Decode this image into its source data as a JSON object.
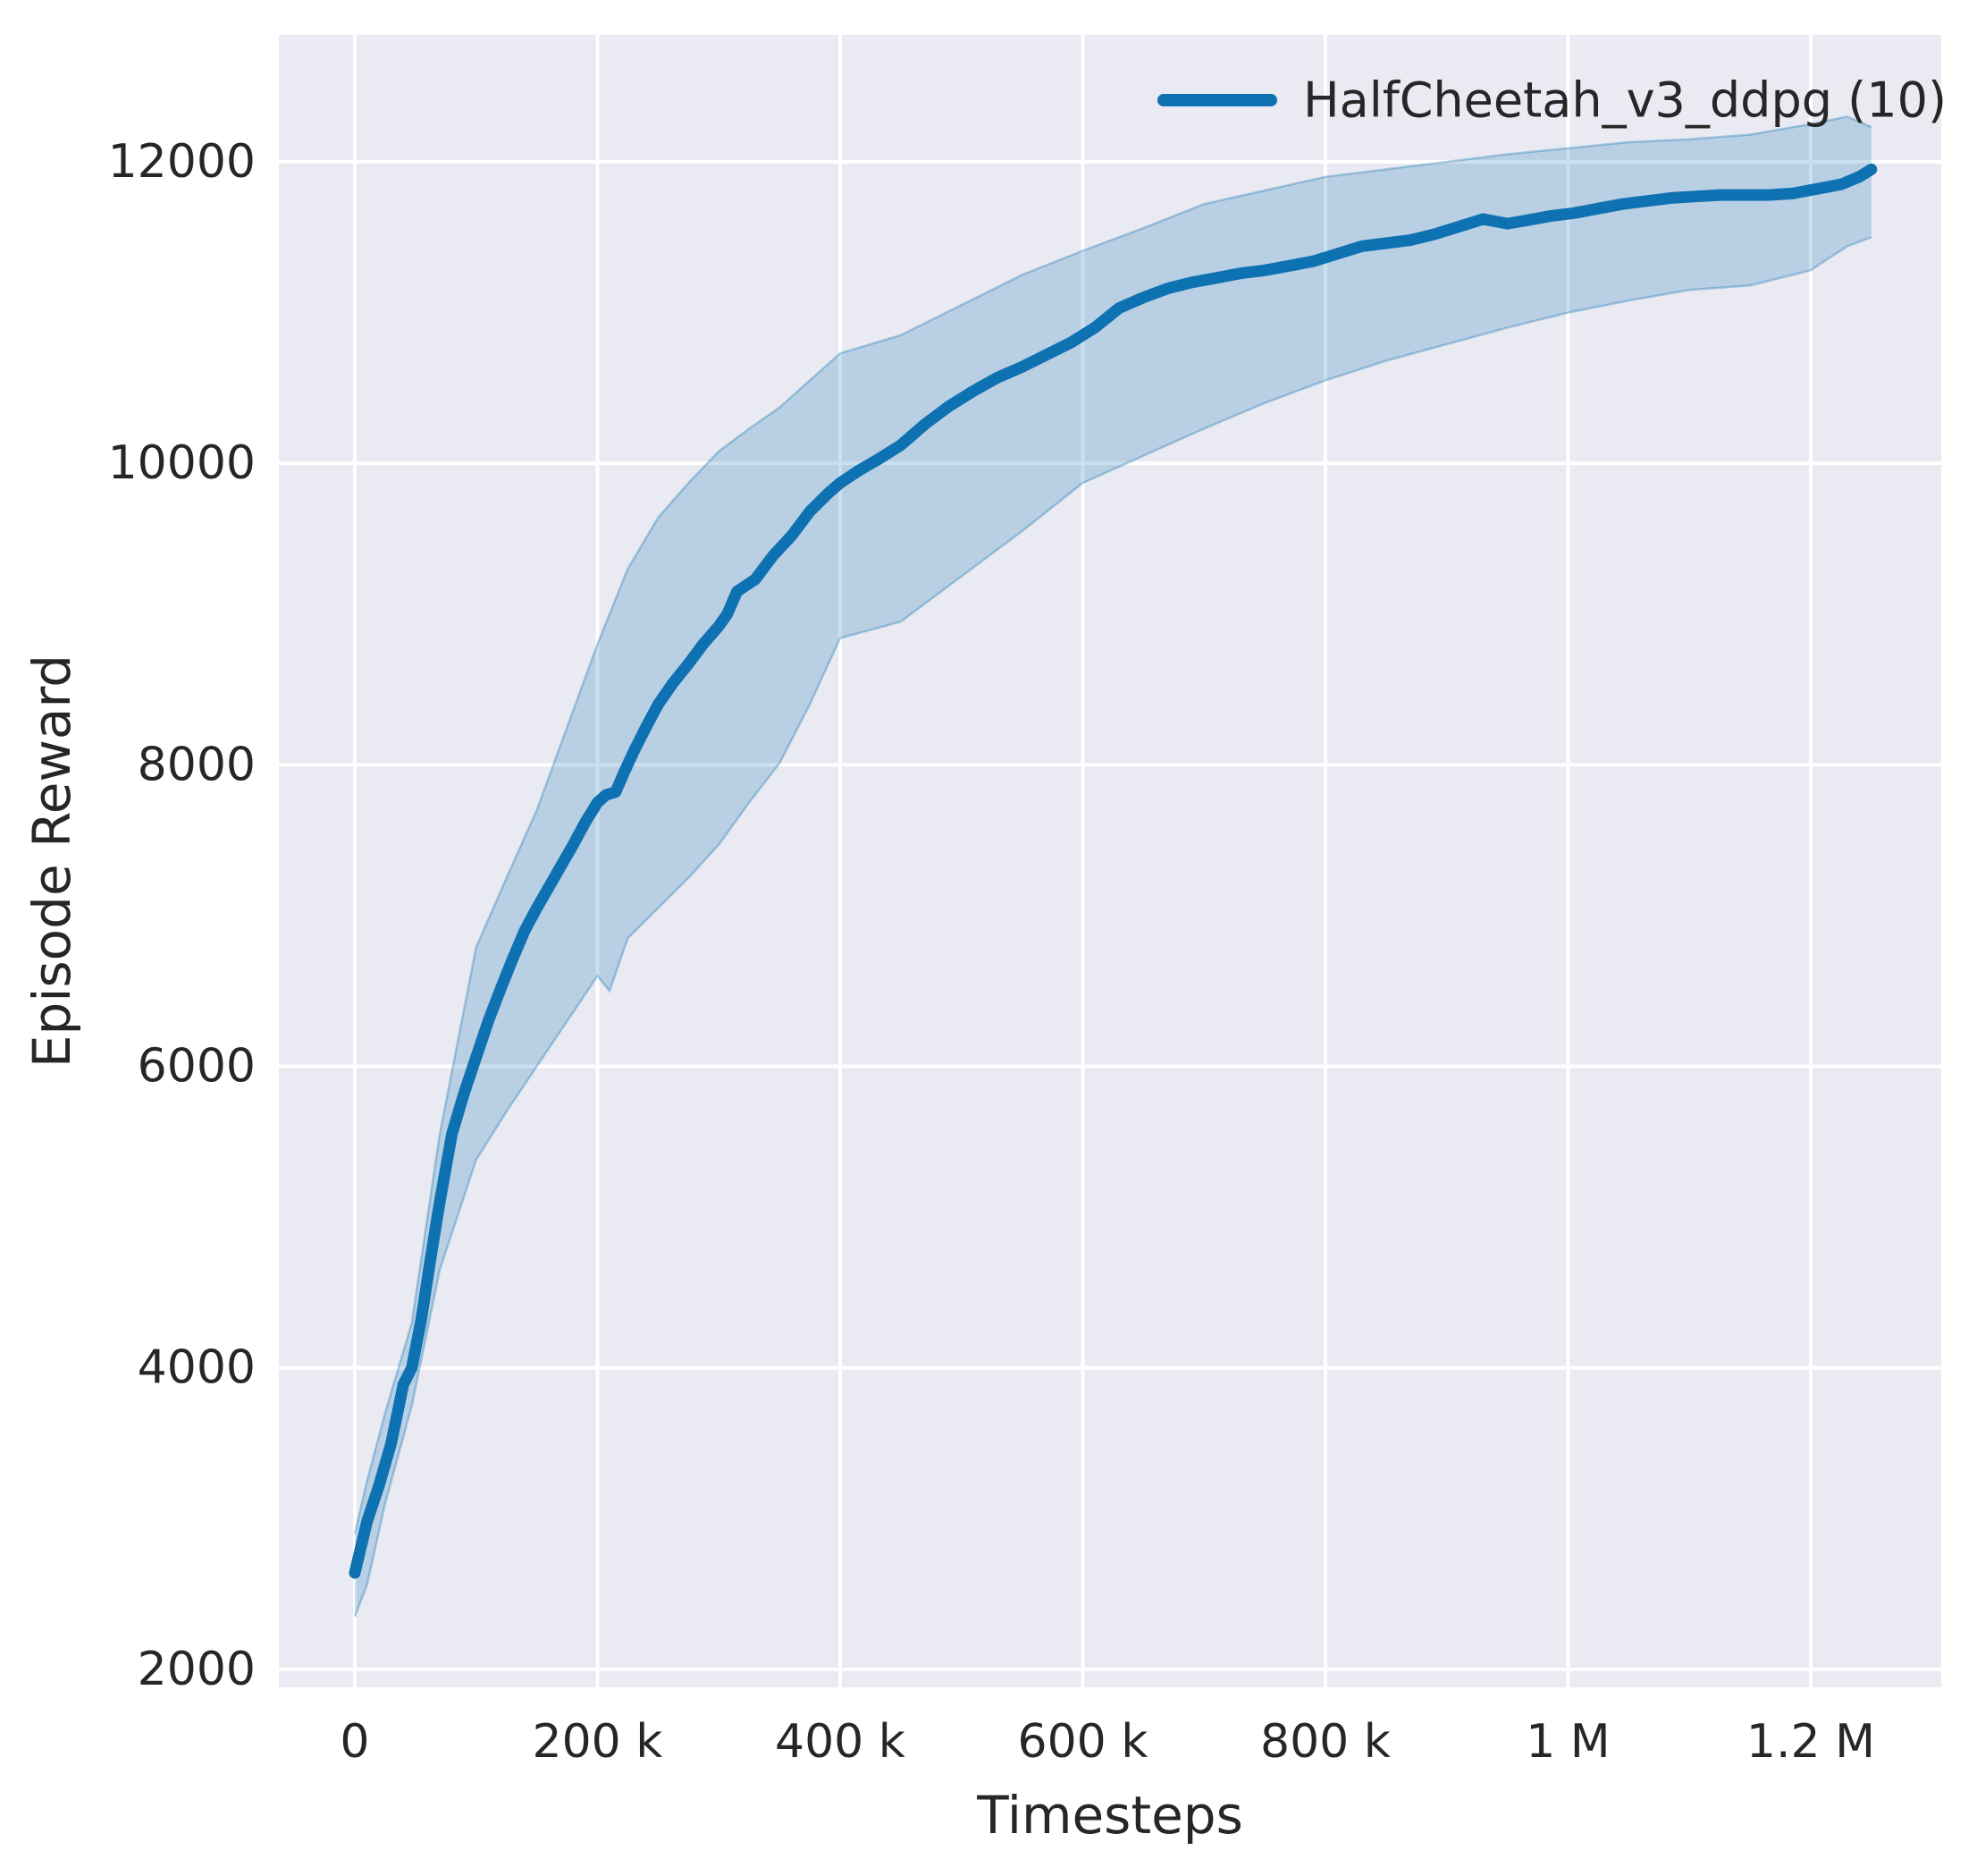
{
  "figure": {
    "background": "#ffffff"
  },
  "axes": {
    "background": "#eaeaf2",
    "grid_color": "#ffffff",
    "text_color": "#262626"
  },
  "legend": {
    "label": "HalfCheetah_v3_ddpg (10)",
    "position": "upper right"
  },
  "chart_data": {
    "type": "line",
    "title": "",
    "xlabel": "Timesteps",
    "ylabel": "Episode Reward",
    "grid": true,
    "legend_position": "upper right",
    "xlim": [
      -62600,
      1307600
    ],
    "ylim": [
      1881,
      12842
    ],
    "x_ticks": [
      {
        "value": 0,
        "label": "0"
      },
      {
        "value": 200000,
        "label": "200 k"
      },
      {
        "value": 400000,
        "label": "400 k"
      },
      {
        "value": 600000,
        "label": "600 k"
      },
      {
        "value": 800000,
        "label": "800 k"
      },
      {
        "value": 1000000,
        "label": "1 M"
      },
      {
        "value": 1200000,
        "label": "1.2 M"
      }
    ],
    "y_ticks": [
      {
        "value": 2000,
        "label": "2000"
      },
      {
        "value": 4000,
        "label": "4000"
      },
      {
        "value": 6000,
        "label": "6000"
      },
      {
        "value": 8000,
        "label": "8000"
      },
      {
        "value": 10000,
        "label": "10000"
      },
      {
        "value": 12000,
        "label": "12000"
      }
    ],
    "series": [
      {
        "name": "HalfCheetah_v3_ddpg (10)",
        "color": "#0e72b2",
        "band_fill_opacity": 0.22,
        "band_edge_opacity": 0.32,
        "x": [
          0,
          10000,
          20000,
          30000,
          40000,
          47000,
          55000,
          62000,
          70000,
          80000,
          90000,
          100000,
          110000,
          120000,
          130000,
          140000,
          150000,
          160000,
          170000,
          180000,
          190000,
          200000,
          207000,
          215000,
          222000,
          230000,
          240000,
          250000,
          262000,
          275000,
          287000,
          300000,
          307000,
          315000,
          330000,
          345000,
          360000,
          375000,
          390000,
          400000,
          415000,
          430000,
          450000,
          470000,
          490000,
          510000,
          530000,
          550000,
          570000,
          590000,
          610000,
          630000,
          650000,
          670000,
          690000,
          710000,
          730000,
          750000,
          770000,
          790000,
          810000,
          830000,
          850000,
          870000,
          890000,
          910000,
          930000,
          950000,
          965000,
          985000,
          1005000,
          1025000,
          1045000,
          1065000,
          1085000,
          1105000,
          1125000,
          1145000,
          1165000,
          1185000,
          1205000,
          1225000,
          1240000,
          1250000
        ],
        "y": [
          2640,
          2980,
          3220,
          3500,
          3890,
          4000,
          4330,
          4700,
          5100,
          5550,
          5820,
          6060,
          6300,
          6510,
          6710,
          6900,
          7050,
          7190,
          7330,
          7470,
          7620,
          7750,
          7800,
          7820,
          7950,
          8090,
          8250,
          8400,
          8540,
          8670,
          8800,
          8920,
          9000,
          9150,
          9230,
          9390,
          9520,
          9680,
          9800,
          9870,
          9950,
          10020,
          10120,
          10260,
          10380,
          10480,
          10570,
          10640,
          10720,
          10800,
          10900,
          11030,
          11100,
          11160,
          11200,
          11230,
          11260,
          11280,
          11310,
          11340,
          11390,
          11440,
          11460,
          11480,
          11520,
          11570,
          11620,
          11590,
          11610,
          11640,
          11660,
          11690,
          11720,
          11740,
          11760,
          11770,
          11780,
          11780,
          11780,
          11790,
          11820,
          11850,
          11900,
          11950
        ],
        "band": {
          "x": [
            0,
            10000,
            25000,
            47000,
            70000,
            100000,
            125000,
            150000,
            175000,
            200000,
            210000,
            225000,
            250000,
            275000,
            300000,
            325000,
            350000,
            375000,
            400000,
            450000,
            500000,
            550000,
            600000,
            650000,
            700000,
            750000,
            800000,
            850000,
            900000,
            950000,
            1000000,
            1050000,
            1100000,
            1150000,
            1200000,
            1230000,
            1250000
          ],
          "lo": [
            2350,
            2560,
            3100,
            3750,
            4650,
            5380,
            5700,
            6000,
            6300,
            6600,
            6500,
            6850,
            7050,
            7250,
            7470,
            7750,
            8010,
            8400,
            8840,
            8950,
            9250,
            9550,
            9870,
            10050,
            10230,
            10400,
            10550,
            10680,
            10790,
            10900,
            11000,
            11080,
            11150,
            11180,
            11280,
            11440,
            11500
          ],
          "hi": [
            2900,
            3250,
            3700,
            4300,
            5550,
            6790,
            7250,
            7700,
            8250,
            8800,
            9000,
            9300,
            9640,
            9870,
            10080,
            10230,
            10370,
            10550,
            10730,
            10850,
            11050,
            11250,
            11410,
            11560,
            11720,
            11810,
            11900,
            11950,
            12000,
            12050,
            12090,
            12130,
            12150,
            12180,
            12250,
            12300,
            12230
          ]
        }
      }
    ]
  }
}
